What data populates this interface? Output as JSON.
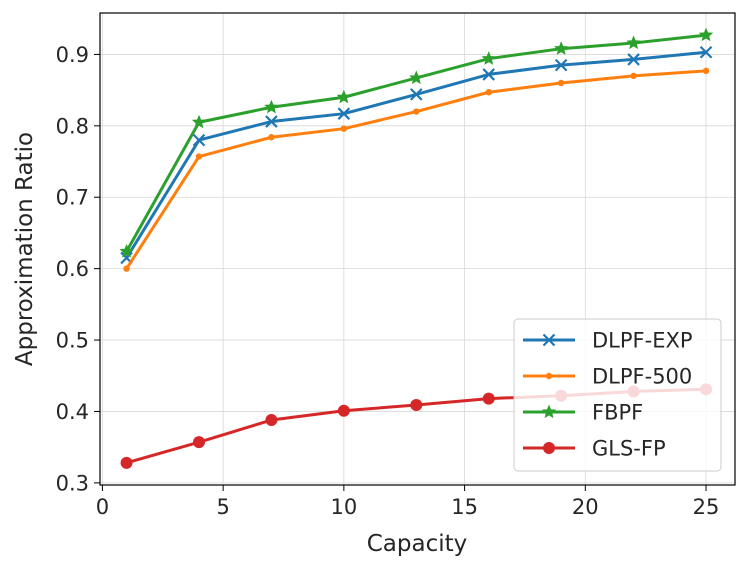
{
  "chart_data": {
    "type": "line",
    "title": "",
    "xlabel": "Capacity",
    "ylabel": "Approximation Ratio",
    "xlim": [
      -0.1,
      26.2
    ],
    "ylim": [
      0.297,
      0.958
    ],
    "xticks": [
      0,
      5,
      10,
      15,
      20,
      25
    ],
    "yticks": [
      0.3,
      0.4,
      0.5,
      0.6,
      0.7,
      0.8,
      0.9
    ],
    "xtick_labels": [
      "0",
      "5",
      "10",
      "15",
      "20",
      "25"
    ],
    "ytick_labels": [
      "0.3",
      "0.4",
      "0.5",
      "0.6",
      "0.7",
      "0.8",
      "0.9"
    ],
    "grid": true,
    "legend_position": "lower-right",
    "x": [
      1,
      4,
      7,
      10,
      13,
      16,
      19,
      22,
      25
    ],
    "series": [
      {
        "name": "DLPF-EXP",
        "color": "#1f77b4",
        "marker": "x",
        "values": [
          0.615,
          0.78,
          0.806,
          0.817,
          0.844,
          0.872,
          0.885,
          0.893,
          0.903
        ]
      },
      {
        "name": "DLPF-500",
        "color": "#ff7f0e",
        "marker": "small-dot",
        "values": [
          0.6,
          0.757,
          0.784,
          0.796,
          0.82,
          0.847,
          0.86,
          0.87,
          0.877
        ]
      },
      {
        "name": "FBPF",
        "color": "#2ca02c",
        "marker": "star",
        "values": [
          0.624,
          0.805,
          0.826,
          0.84,
          0.867,
          0.894,
          0.908,
          0.916,
          0.927
        ]
      },
      {
        "name": "GLS-FP",
        "color": "#d62728",
        "marker": "dot",
        "values": [
          0.328,
          0.357,
          0.388,
          0.401,
          0.409,
          0.418,
          0.422,
          0.428,
          0.431
        ]
      }
    ]
  }
}
